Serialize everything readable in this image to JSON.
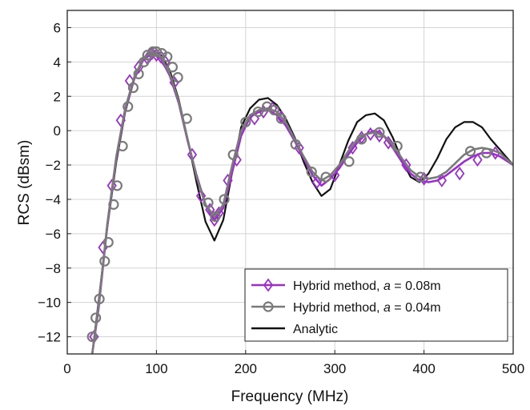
{
  "chart_data": {
    "type": "line",
    "title": "",
    "xlabel": "Frequency (MHz)",
    "ylabel": "RCS (dBsm)",
    "xlim": [
      0,
      500
    ],
    "ylim": [
      -13,
      7
    ],
    "xticks": [
      0,
      100,
      200,
      300,
      400,
      500
    ],
    "yticks": [
      -12,
      -10,
      -8,
      -6,
      -4,
      -2,
      0,
      2,
      4,
      6
    ],
    "grid": true,
    "legend_position": "bottom-right",
    "series": [
      {
        "name": "Hybrid method, a = 0.08m",
        "legend_prefix": "Hybrid method, ",
        "legend_var": "a",
        "legend_suffix": " = 0.08m",
        "color": "#9b2fc9",
        "marker": "diamond",
        "x": [
          28,
          35,
          45,
          55,
          65,
          75,
          85,
          95,
          105,
          115,
          125,
          135,
          145,
          155,
          165,
          175,
          185,
          195,
          205,
          215,
          225,
          235,
          245,
          255,
          265,
          275,
          285,
          295,
          305,
          315,
          325,
          335,
          345,
          355,
          365,
          375,
          385,
          395,
          405,
          415,
          425,
          435,
          445,
          455,
          465,
          475,
          485,
          500
        ],
        "y": [
          -13.0,
          -10.4,
          -5.5,
          -1.6,
          1.2,
          3.0,
          4.1,
          4.5,
          4.2,
          3.2,
          1.6,
          -0.6,
          -2.6,
          -4.3,
          -5.2,
          -4.5,
          -2.4,
          -0.3,
          0.8,
          1.1,
          1.2,
          0.9,
          0.3,
          -0.6,
          -1.6,
          -2.6,
          -3.2,
          -2.8,
          -2.2,
          -1.4,
          -0.7,
          -0.2,
          0.0,
          -0.3,
          -1.0,
          -1.8,
          -2.5,
          -2.9,
          -3.0,
          -2.9,
          -2.6,
          -2.2,
          -1.8,
          -1.5,
          -1.3,
          -1.3,
          -1.5,
          -2.0
        ],
        "marker_x": [
          30,
          40,
          50,
          60,
          70,
          80,
          90,
          95,
          100,
          105,
          110,
          120,
          140,
          150,
          160,
          165,
          170,
          180,
          190,
          210,
          220,
          230,
          240,
          260,
          280,
          300,
          320,
          330,
          340,
          350,
          360,
          380,
          400,
          420,
          440,
          460,
          480
        ],
        "marker_y": [
          -12.0,
          -6.8,
          -3.2,
          0.6,
          2.9,
          3.7,
          4.2,
          4.5,
          4.4,
          4.3,
          4.0,
          2.8,
          -1.4,
          -3.8,
          -4.6,
          -5.2,
          -4.8,
          -2.9,
          -1.7,
          0.7,
          1.1,
          1.3,
          0.8,
          -1.0,
          -3.0,
          -2.6,
          -1.0,
          -0.4,
          -0.2,
          -0.3,
          -0.7,
          -2.0,
          -2.8,
          -2.9,
          -2.5,
          -1.7,
          -1.3
        ]
      },
      {
        "name": "Hybrid method, a = 0.04m",
        "legend_prefix": "Hybrid method, ",
        "legend_var": "a",
        "legend_suffix": " = 0.04m",
        "color": "#7a7a7a",
        "marker": "circle",
        "x": [
          28,
          35,
          45,
          55,
          65,
          75,
          85,
          95,
          105,
          115,
          125,
          135,
          145,
          155,
          165,
          175,
          185,
          195,
          205,
          215,
          225,
          235,
          245,
          255,
          265,
          275,
          285,
          295,
          305,
          315,
          325,
          335,
          345,
          355,
          365,
          375,
          385,
          395,
          405,
          415,
          425,
          435,
          445,
          455,
          465,
          475,
          485,
          500
        ],
        "y": [
          -13.0,
          -10.2,
          -5.4,
          -1.5,
          1.3,
          3.1,
          4.2,
          4.6,
          4.3,
          3.3,
          1.7,
          -0.5,
          -2.7,
          -4.3,
          -5.0,
          -4.3,
          -2.0,
          0.0,
          0.9,
          1.2,
          1.3,
          1.1,
          0.5,
          -0.5,
          -1.5,
          -2.4,
          -2.9,
          -2.6,
          -2.0,
          -1.2,
          -0.5,
          -0.2,
          -0.1,
          -0.3,
          -0.8,
          -1.6,
          -2.3,
          -2.7,
          -2.8,
          -2.7,
          -2.4,
          -1.9,
          -1.4,
          -1.1,
          -1.0,
          -1.1,
          -1.3,
          -2.0
        ],
        "marker_x": [
          28,
          32,
          36,
          42,
          46,
          52,
          56,
          62,
          68,
          74,
          80,
          86,
          90,
          96,
          100,
          106,
          112,
          118,
          124,
          134,
          158,
          166,
          176,
          186,
          200,
          214,
          224,
          232,
          240,
          256,
          274,
          290,
          316,
          330,
          350,
          370,
          396,
          452,
          470
        ],
        "marker_y": [
          -12.0,
          -10.9,
          -9.8,
          -7.6,
          -6.5,
          -4.3,
          -3.2,
          -0.9,
          1.4,
          2.5,
          3.3,
          4.0,
          4.4,
          4.6,
          4.6,
          4.5,
          4.3,
          3.7,
          3.1,
          0.7,
          -4.2,
          -5.0,
          -4.0,
          -1.4,
          0.5,
          1.1,
          1.4,
          1.2,
          0.7,
          -0.8,
          -2.4,
          -2.7,
          -1.8,
          -0.5,
          -0.1,
          -0.9,
          -2.7,
          -1.2,
          -1.3
        ]
      },
      {
        "name": "Analytic",
        "legend_prefix": "Analytic",
        "legend_var": "",
        "legend_suffix": "",
        "color": "#111111",
        "marker": "none",
        "x": [
          28,
          35,
          45,
          55,
          65,
          75,
          85,
          95,
          105,
          115,
          125,
          135,
          145,
          155,
          165,
          175,
          185,
          195,
          205,
          215,
          225,
          235,
          245,
          255,
          265,
          275,
          285,
          295,
          305,
          315,
          325,
          335,
          345,
          355,
          365,
          375,
          385,
          395,
          405,
          415,
          425,
          435,
          445,
          455,
          465,
          475,
          485,
          500
        ],
        "y": [
          -13.0,
          -10.0,
          -5.6,
          -1.8,
          1.1,
          3.0,
          4.1,
          4.6,
          4.4,
          3.5,
          1.8,
          -0.5,
          -3.0,
          -5.3,
          -6.4,
          -5.2,
          -2.4,
          0.2,
          1.3,
          1.8,
          1.9,
          1.5,
          0.7,
          -0.4,
          -1.8,
          -3.0,
          -3.8,
          -3.4,
          -2.0,
          -0.6,
          0.5,
          0.9,
          1.0,
          0.6,
          -0.4,
          -1.7,
          -2.7,
          -3.0,
          -2.5,
          -1.6,
          -0.5,
          0.2,
          0.5,
          0.5,
          0.2,
          -0.5,
          -1.1,
          -2.0
        ]
      }
    ]
  }
}
